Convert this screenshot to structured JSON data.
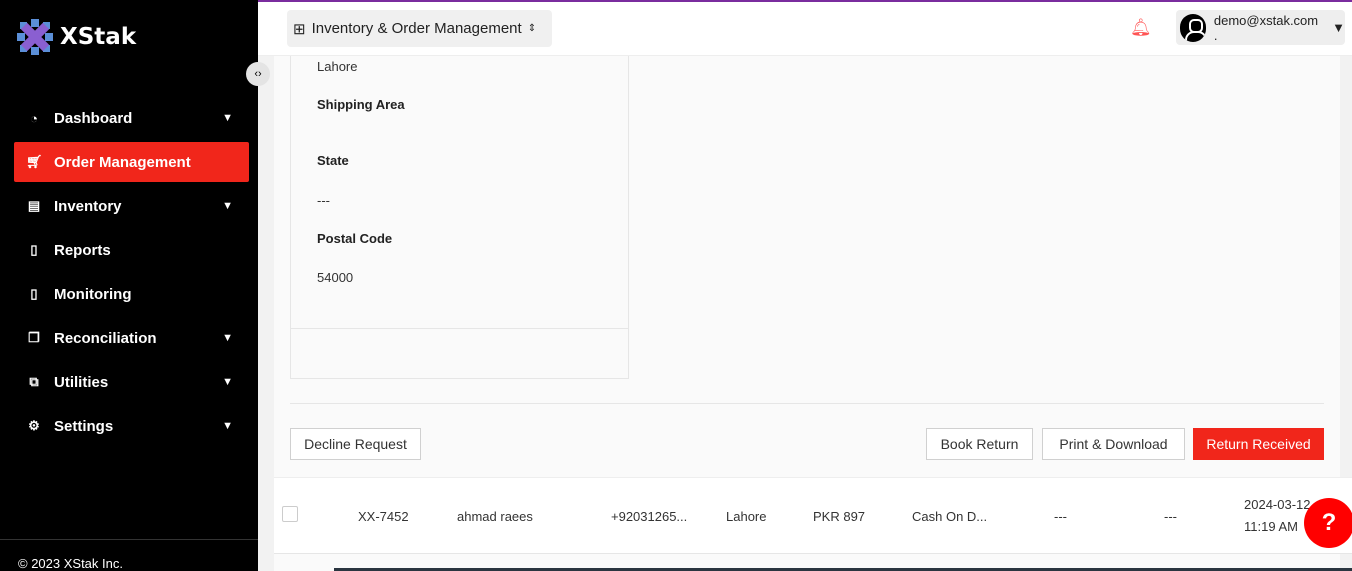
{
  "brand": {
    "name": "XStak",
    "copyright": "© 2023 XStak Inc."
  },
  "sidebar": {
    "items": [
      {
        "label": "Dashboard",
        "icon": "gauge-icon",
        "has_children": true
      },
      {
        "label": "Order Management",
        "icon": "cart-icon",
        "active": true
      },
      {
        "label": "Inventory",
        "icon": "store-icon",
        "has_children": true
      },
      {
        "label": "Reports",
        "icon": "document-icon"
      },
      {
        "label": "Monitoring",
        "icon": "monitor-doc-icon"
      },
      {
        "label": "Reconciliation",
        "icon": "copy-icon",
        "has_children": true
      },
      {
        "label": "Utilities",
        "icon": "sliders-icon",
        "has_children": true
      },
      {
        "label": "Settings",
        "icon": "gear-icon",
        "has_children": true
      }
    ]
  },
  "header": {
    "app": "Inventory & Order Management",
    "user": "demo@xstak.com ."
  },
  "address": {
    "city": "Lahore",
    "shipping_area_label": "Shipping Area",
    "state_label": "State",
    "state": "---",
    "postal_code_label": "Postal Code",
    "postal_code": "54000"
  },
  "actions": {
    "decline": "Decline Request",
    "book_return": "Book Return",
    "print": "Print & Download",
    "received": "Return Received"
  },
  "row": {
    "order_id": "XX-7452",
    "customer": "ahmad raees",
    "phone": "+92031265...",
    "city": "Lahore",
    "amount": "PKR 897",
    "payment": "Cash On D...",
    "col7": "---",
    "col8": "---",
    "date": "2024-03-12",
    "time": "11:19 AM"
  },
  "colors": {
    "accent": "#f1261b"
  }
}
